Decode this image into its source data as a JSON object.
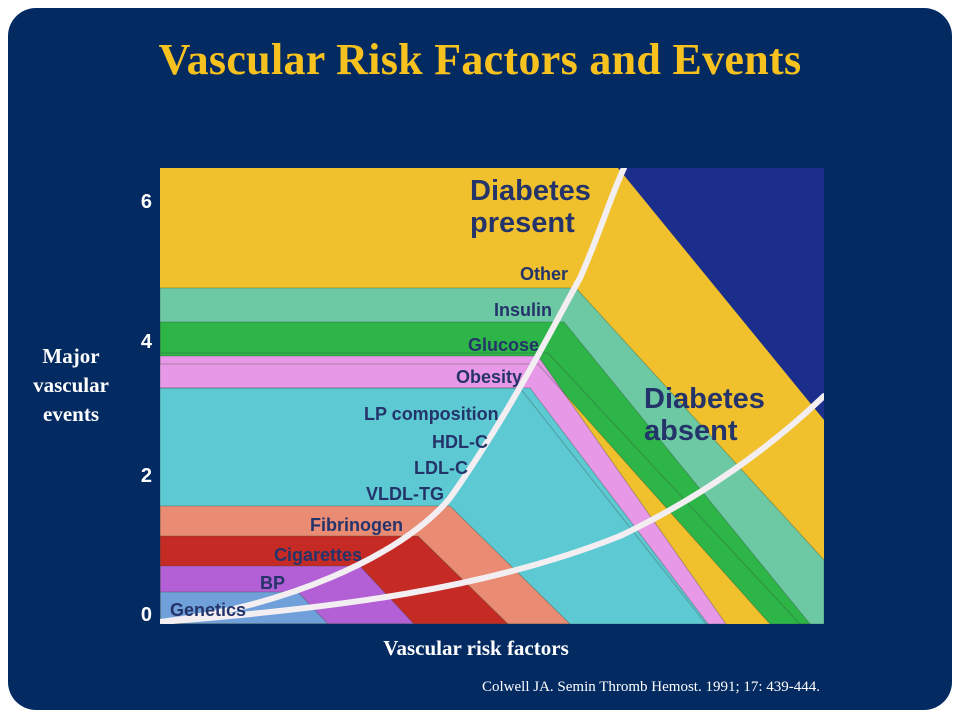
{
  "title": "Vascular Risk Factors and Events",
  "citation": "Colwell JA. Semin Thromb Hemost. 1991; 17: 439-444.",
  "colors": {
    "background": "#042a62",
    "title": "#f7c21e",
    "curve": "#f2eef2",
    "genetics": "#6fa0da",
    "bp": "#b35fd6",
    "cigarettes": "#c62a25",
    "fibrinogen": "#ea8c74",
    "lp": "#5dc9d3",
    "obesity": "#e798e6",
    "glucose": "#2db548",
    "insulin": "#6cc9a3",
    "other": "#f0c12c",
    "dark_corner": "#1c2e8c"
  },
  "chart_data": {
    "type": "area",
    "title": "Vascular Risk Factors and Events",
    "xlabel": "Vascular risk factors",
    "ylabel": "Major vascular events",
    "ylim": [
      0,
      6
    ],
    "yticks": [
      "0",
      "2",
      "4",
      "6"
    ],
    "layers": [
      {
        "name": "Genetics",
        "color_key": "genetics"
      },
      {
        "name": "BP",
        "color_key": "bp"
      },
      {
        "name": "Cigarettes",
        "color_key": "cigarettes"
      },
      {
        "name": "Fibrinogen",
        "color_key": "fibrinogen"
      },
      {
        "name": "LP composition",
        "sublabels": [
          "HDL-C",
          "LDL-C",
          "VLDL-TG"
        ],
        "color_key": "lp"
      },
      {
        "name": "Obesity",
        "color_key": "obesity"
      },
      {
        "name": "Glucose",
        "color_key": "glucose"
      },
      {
        "name": "Insulin",
        "color_key": "insulin"
      },
      {
        "name": "Other",
        "color_key": "other"
      }
    ],
    "series": [
      {
        "name": "Diabetes present",
        "x": [
          0,
          1.2,
          2.5,
          4.2,
          5.6,
          6.2,
          6.9,
          8.5
        ],
        "y": [
          0,
          0.3,
          0.7,
          1.5,
          3.3,
          4.5,
          6.2,
          6.2
        ]
      },
      {
        "name": "Diabetes absent",
        "x": [
          0,
          2,
          4,
          6,
          8,
          10
        ],
        "y": [
          0,
          0.2,
          0.5,
          1.1,
          2.0,
          3.0
        ]
      }
    ],
    "annotations": [
      "Diabetes present",
      "Diabetes absent"
    ]
  }
}
